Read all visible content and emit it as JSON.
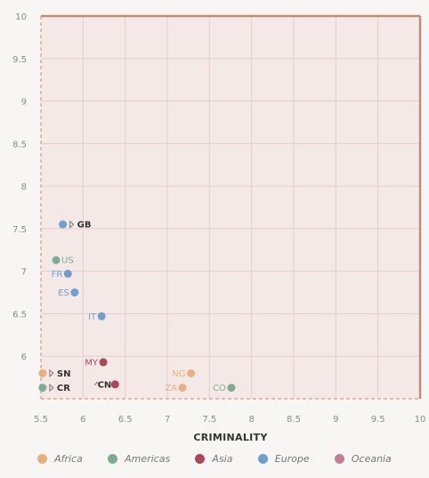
{
  "chart_data": {
    "type": "scatter",
    "title": "",
    "xlabel": "CRIMINALITY",
    "ylabel": "",
    "xlim": [
      5.5,
      10
    ],
    "ylim": [
      5.5,
      10
    ],
    "x_ticks": [
      "5.5",
      "6",
      "6.5",
      "7",
      "7.5",
      "8",
      "8.5",
      "9",
      "9.5",
      "10"
    ],
    "y_ticks": [
      "6",
      "6.5",
      "7",
      "7.5",
      "8",
      "8.5",
      "9",
      "9.5",
      "10"
    ],
    "grid": true,
    "legend_position": "bottom",
    "series": [
      {
        "name": "Africa",
        "color": "#e8b07e"
      },
      {
        "name": "Americas",
        "color": "#7faa94"
      },
      {
        "name": "Asia",
        "color": "#a8485a"
      },
      {
        "name": "Europe",
        "color": "#6f9fcd"
      },
      {
        "name": "Oceania",
        "color": "#c47d9c"
      }
    ],
    "points": [
      {
        "label": "GB",
        "x": 5.76,
        "y": 7.55,
        "region": "Europe",
        "bold": true,
        "marker": true
      },
      {
        "label": "US",
        "x": 5.68,
        "y": 7.13,
        "region": "Americas"
      },
      {
        "label": "FR",
        "x": 5.82,
        "y": 6.97,
        "region": "Europe"
      },
      {
        "label": "ES",
        "x": 5.9,
        "y": 6.75,
        "region": "Europe"
      },
      {
        "label": "IT",
        "x": 6.22,
        "y": 6.47,
        "region": "Europe"
      },
      {
        "label": "MY",
        "x": 6.24,
        "y": 5.93,
        "region": "Asia"
      },
      {
        "label": "NG",
        "x": 7.28,
        "y": 5.8,
        "region": "Africa"
      },
      {
        "label": "SN",
        "x": 5.52,
        "y": 5.8,
        "region": "Africa",
        "bold": true,
        "marker": true
      },
      {
        "label": "CR",
        "x": 5.52,
        "y": 5.63,
        "region": "Americas",
        "bold": true,
        "marker": true
      },
      {
        "label": "CN",
        "x": 6.38,
        "y": 5.67,
        "region": "Asia",
        "bold": true,
        "up": true
      },
      {
        "label": "ZA",
        "x": 7.18,
        "y": 5.63,
        "region": "Africa"
      },
      {
        "label": "CO",
        "x": 7.76,
        "y": 5.63,
        "region": "Americas"
      }
    ]
  }
}
